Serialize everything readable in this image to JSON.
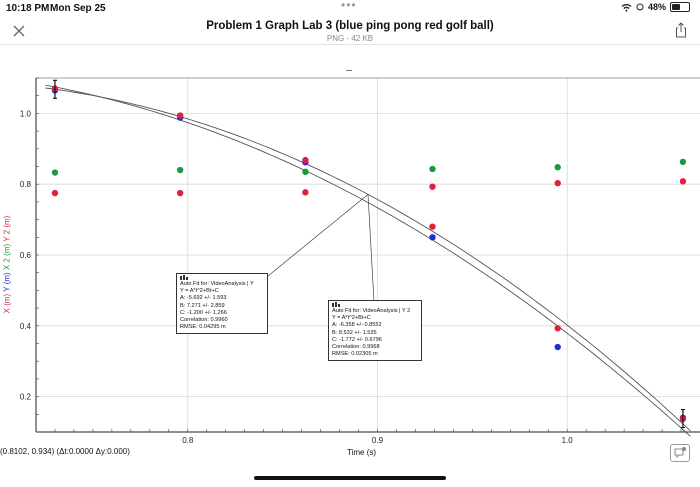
{
  "status": {
    "time": "10:18 PM",
    "date": "Mon Sep 25",
    "battery": "48%",
    "battery_level": 0.48
  },
  "header": {
    "title": "Problem 1 Graph Lab 3 (blue ping pong red golf ball)",
    "subtitle": "PNG - 42 KB"
  },
  "icons": {
    "close": "close-icon",
    "share": "share-icon",
    "chat": "chat-icon",
    "wifi": "wifi-icon",
    "battery": "battery-icon"
  },
  "graph": {
    "coord_readout": "(0.8102, 0.934) (Δt:0.0000 Δy:0.000)",
    "xlabel": "Time (s)",
    "y_labels": [
      {
        "text": "X (m)",
        "color": "#e0203f"
      },
      {
        "text": "Y (m)",
        "color": "#2030d0"
      },
      {
        "text": "X 2 (m)",
        "color": "#1a9a40"
      },
      {
        "text": "Y 2 (m)",
        "color": "#e0203f"
      }
    ],
    "fit1": {
      "header": "Auto Fit for: VideoAnalysis | Y",
      "lines": [
        "Y = A*t^2+Bt+C",
        "A: -5.692 +/- 1.593",
        "B: 7.271 +/- 2.859",
        "C: -1.200 +/- 1.266",
        "Correlation: 0.9960",
        "RMSE: 0.04295 m"
      ]
    },
    "fit2": {
      "header": "Auto Fit for: VideoAnalysis | Y 2",
      "lines": [
        "Y = A*t^2+Bt+C",
        "A: -6.358 +/- 0.8552",
        "B: 8.532 +/- 1.535",
        "C: -1.772 +/- 0.6796",
        "Correlation: 0.9968",
        "RMSE: 0.02305 m"
      ]
    }
  },
  "chart_data": {
    "type": "scatter",
    "title": "",
    "xlabel": "Time (s)",
    "ylabel": "X (m) Y (m) X 2 (m) Y 2 (m)",
    "xlim": [
      0.72,
      1.07
    ],
    "ylim": [
      0.1,
      1.1
    ],
    "x_ticks": [
      "0.8",
      "0.9",
      "1.0"
    ],
    "y_ticks": [
      "1.0",
      "0.8",
      "0.6",
      "0.4",
      "0.2"
    ],
    "grid": true,
    "series": [
      {
        "name": "X (m)",
        "color": "#e0203f",
        "points": [
          [
            0.73,
            0.775
          ],
          [
            0.796,
            0.775
          ],
          [
            0.862,
            0.777
          ],
          [
            0.929,
            0.793
          ],
          [
            0.995,
            0.803
          ],
          [
            1.061,
            0.808
          ]
        ]
      },
      {
        "name": "Y (m)",
        "color": "#2030d0",
        "points": [
          [
            0.73,
            1.065
          ],
          [
            0.796,
            0.988
          ],
          [
            0.862,
            0.862
          ],
          [
            0.929,
            0.65
          ],
          [
            0.995,
            0.34
          ],
          [
            1.061,
            0.14
          ]
        ]
      },
      {
        "name": "X 2 (m)",
        "color": "#1a9a40",
        "points": [
          [
            0.73,
            0.833
          ],
          [
            0.796,
            0.84
          ],
          [
            0.862,
            0.835
          ],
          [
            0.929,
            0.843
          ],
          [
            0.995,
            0.848
          ],
          [
            1.061,
            0.863
          ]
        ]
      },
      {
        "name": "Y 2 (m)",
        "color": "#e0203f",
        "points": [
          [
            0.73,
            1.07
          ],
          [
            0.796,
            0.994
          ],
          [
            0.862,
            0.868
          ],
          [
            0.929,
            0.68
          ],
          [
            0.995,
            0.393
          ],
          [
            1.061,
            0.137
          ]
        ]
      }
    ],
    "fits": [
      {
        "name": "Y",
        "A": -5.692,
        "B": 7.271,
        "C": -1.2
      },
      {
        "name": "Y 2",
        "A": -6.358,
        "B": 8.532,
        "C": -1.772
      }
    ]
  }
}
